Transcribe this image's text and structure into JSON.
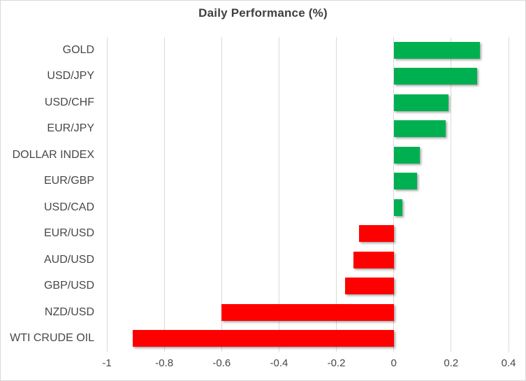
{
  "chart_data": {
    "type": "bar",
    "orientation": "horizontal",
    "title": "Daily Performance (%)",
    "categories": [
      "GOLD",
      "USD/JPY",
      "USD/CHF",
      "EUR/JPY",
      "DOLLAR INDEX",
      "EUR/GBP",
      "USD/CAD",
      "EUR/USD",
      "AUD/USD",
      "GBP/USD",
      "NZD/USD",
      "WTI CRUDE OIL"
    ],
    "values": [
      0.3,
      0.29,
      0.19,
      0.18,
      0.09,
      0.08,
      0.03,
      -0.12,
      -0.14,
      -0.17,
      -0.6,
      -0.91
    ],
    "xlabel": "",
    "ylabel": "",
    "xlim": [
      -1,
      0.4
    ],
    "x_ticks": [
      -1,
      -0.8,
      -0.6,
      -0.4,
      -0.2,
      0,
      0.2,
      0.4
    ],
    "x_tick_labels": [
      "-1",
      "-0.8",
      "-0.6",
      "-0.4",
      "-0.2",
      "0",
      "0.2",
      "0.4"
    ],
    "grid": "vertical-on",
    "legend": "none",
    "colors": {
      "positive": "#00B050",
      "negative": "#FF0000",
      "gridline": "#D9D9D9",
      "border": "#D9D9D9",
      "background": "#FFFFFF",
      "title_text": "#3F3F3F",
      "axis_text": "#474747"
    }
  }
}
